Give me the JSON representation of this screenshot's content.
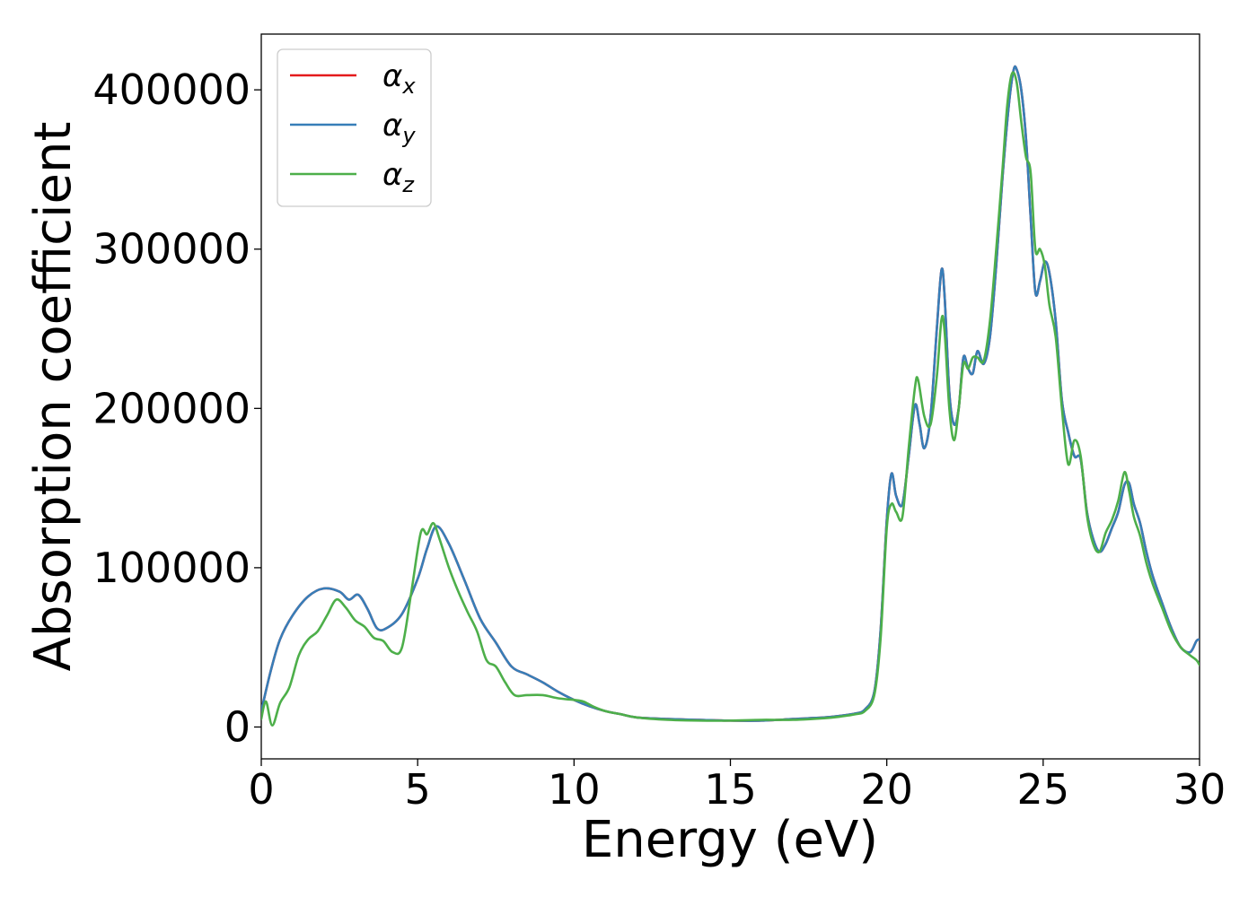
{
  "chart_data": {
    "type": "line",
    "title": "",
    "xlabel": "Energy (eV)",
    "ylabel": "Absorption coefficient",
    "xlim": [
      0,
      30
    ],
    "ylim": [
      -20000,
      435000
    ],
    "xticks": [
      0,
      5,
      10,
      15,
      20,
      25,
      30
    ],
    "yticks": [
      0,
      100000,
      200000,
      300000,
      400000
    ],
    "grid": false,
    "legend_position": "upper-left",
    "series": [
      {
        "name": "α_x",
        "symbol": "α",
        "sub": "x",
        "color": "#e41a1c",
        "x": [
          0,
          0.3,
          0.6,
          1.0,
          1.5,
          2.0,
          2.5,
          2.8,
          3.1,
          3.4,
          3.7,
          4.0,
          4.5,
          5.0,
          5.3,
          5.6,
          6.0,
          6.5,
          7.0,
          7.5,
          8.0,
          8.5,
          9.0,
          9.5,
          10.0,
          10.5,
          11.0,
          11.5,
          12.0,
          13.0,
          14.0,
          15.0,
          16.0,
          17.0,
          18.0,
          18.5,
          19.0,
          19.3,
          19.6,
          19.8,
          20.0,
          20.15,
          20.3,
          20.5,
          20.7,
          20.9,
          21.05,
          21.2,
          21.4,
          21.6,
          21.75,
          21.85,
          22.0,
          22.15,
          22.3,
          22.45,
          22.6,
          22.75,
          22.9,
          23.1,
          23.3,
          23.5,
          23.7,
          23.9,
          24.05,
          24.15,
          24.3,
          24.45,
          24.6,
          24.75,
          24.9,
          25.05,
          25.2,
          25.4,
          25.6,
          25.8,
          26.0,
          26.2,
          26.4,
          26.6,
          26.8,
          27.0,
          27.2,
          27.4,
          27.6,
          27.75,
          27.9,
          28.1,
          28.3,
          28.5,
          28.8,
          29.1,
          29.4,
          29.7,
          29.9,
          30.0
        ],
        "y": [
          10000,
          35000,
          55000,
          70000,
          82000,
          87000,
          85000,
          80000,
          83000,
          74000,
          62000,
          62000,
          71000,
          93000,
          112000,
          126000,
          115000,
          92000,
          68000,
          53000,
          38000,
          33000,
          28000,
          22000,
          17000,
          13000,
          10000,
          8000,
          6000,
          5000,
          4500,
          4000,
          4000,
          5000,
          6000,
          7000,
          8500,
          11000,
          22000,
          60000,
          130000,
          159000,
          145000,
          140000,
          170000,
          202000,
          190000,
          175000,
          195000,
          250000,
          287000,
          270000,
          210000,
          190000,
          200000,
          232000,
          225000,
          222000,
          236000,
          228000,
          245000,
          290000,
          345000,
          390000,
          412000,
          413000,
          400000,
          370000,
          320000,
          273000,
          280000,
          292000,
          285000,
          255000,
          205000,
          185000,
          170000,
          168000,
          135000,
          118000,
          110000,
          115000,
          125000,
          135000,
          152000,
          153000,
          140000,
          128000,
          110000,
          95000,
          78000,
          62000,
          50000,
          47000,
          54000,
          55000
        ]
      },
      {
        "name": "α_y",
        "symbol": "α",
        "sub": "y",
        "color": "#377eb8",
        "x": [
          0,
          0.3,
          0.6,
          1.0,
          1.5,
          2.0,
          2.5,
          2.8,
          3.1,
          3.4,
          3.7,
          4.0,
          4.5,
          5.0,
          5.3,
          5.6,
          6.0,
          6.5,
          7.0,
          7.5,
          8.0,
          8.5,
          9.0,
          9.5,
          10.0,
          10.5,
          11.0,
          11.5,
          12.0,
          13.0,
          14.0,
          15.0,
          16.0,
          17.0,
          18.0,
          18.5,
          19.0,
          19.3,
          19.6,
          19.8,
          20.0,
          20.15,
          20.3,
          20.5,
          20.7,
          20.9,
          21.05,
          21.2,
          21.4,
          21.6,
          21.75,
          21.85,
          22.0,
          22.15,
          22.3,
          22.45,
          22.6,
          22.75,
          22.9,
          23.1,
          23.3,
          23.5,
          23.7,
          23.9,
          24.05,
          24.15,
          24.3,
          24.45,
          24.6,
          24.75,
          24.9,
          25.05,
          25.2,
          25.4,
          25.6,
          25.8,
          26.0,
          26.2,
          26.4,
          26.6,
          26.8,
          27.0,
          27.2,
          27.4,
          27.6,
          27.75,
          27.9,
          28.1,
          28.3,
          28.5,
          28.8,
          29.1,
          29.4,
          29.7,
          29.9,
          30.0
        ],
        "y": [
          10000,
          35000,
          55000,
          70000,
          82000,
          87000,
          85000,
          80000,
          83000,
          74000,
          62000,
          62000,
          71000,
          93000,
          112000,
          126000,
          115000,
          92000,
          68000,
          53000,
          38000,
          33000,
          28000,
          22000,
          17000,
          13000,
          10000,
          8000,
          6000,
          5000,
          4500,
          4000,
          4000,
          5000,
          6000,
          7000,
          8500,
          11000,
          22000,
          60000,
          130000,
          159000,
          145000,
          140000,
          170000,
          202000,
          190000,
          175000,
          195000,
          250000,
          287000,
          270000,
          210000,
          190000,
          200000,
          232000,
          225000,
          222000,
          236000,
          228000,
          245000,
          290000,
          345000,
          390000,
          412000,
          413000,
          400000,
          370000,
          320000,
          273000,
          280000,
          292000,
          285000,
          255000,
          205000,
          185000,
          170000,
          168000,
          135000,
          118000,
          110000,
          115000,
          125000,
          135000,
          152000,
          153000,
          140000,
          128000,
          110000,
          95000,
          78000,
          62000,
          50000,
          47000,
          54000,
          55000
        ]
      },
      {
        "name": "α_z",
        "symbol": "α",
        "sub": "z",
        "color": "#4daf4a",
        "x": [
          0,
          0.15,
          0.35,
          0.6,
          0.9,
          1.2,
          1.5,
          1.8,
          2.1,
          2.4,
          2.7,
          3.0,
          3.3,
          3.6,
          3.9,
          4.2,
          4.5,
          4.8,
          5.1,
          5.3,
          5.5,
          5.7,
          6.0,
          6.3,
          6.6,
          6.9,
          7.2,
          7.5,
          7.8,
          8.1,
          8.5,
          9.0,
          9.5,
          10.0,
          10.3,
          10.6,
          11.0,
          11.5,
          12.0,
          13.0,
          14.0,
          15.0,
          16.0,
          17.0,
          18.0,
          18.5,
          19.0,
          19.3,
          19.6,
          19.8,
          20.0,
          20.15,
          20.3,
          20.5,
          20.7,
          20.9,
          21.0,
          21.2,
          21.4,
          21.6,
          21.75,
          21.85,
          22.0,
          22.15,
          22.3,
          22.45,
          22.6,
          22.75,
          22.9,
          23.1,
          23.3,
          23.5,
          23.7,
          23.85,
          24.0,
          24.15,
          24.3,
          24.45,
          24.6,
          24.75,
          24.9,
          25.05,
          25.2,
          25.4,
          25.6,
          25.8,
          26.0,
          26.2,
          26.4,
          26.6,
          26.8,
          27.0,
          27.2,
          27.4,
          27.6,
          27.75,
          27.9,
          28.1,
          28.3,
          28.5,
          28.8,
          29.1,
          29.4,
          29.7,
          29.9,
          30.0
        ],
        "y": [
          5000,
          16000,
          1000,
          15000,
          25000,
          45000,
          55000,
          60000,
          70000,
          80000,
          75000,
          67000,
          63000,
          56000,
          54000,
          47000,
          50000,
          85000,
          122000,
          121000,
          128000,
          118000,
          100000,
          85000,
          72000,
          60000,
          42000,
          38000,
          28000,
          20000,
          20000,
          20000,
          18000,
          17000,
          16000,
          13000,
          10000,
          8000,
          6000,
          4500,
          4000,
          4000,
          4500,
          4500,
          5500,
          6500,
          8000,
          10000,
          20000,
          55000,
          125000,
          140000,
          135000,
          132000,
          175000,
          213000,
          218000,
          195000,
          190000,
          220000,
          256000,
          248000,
          200000,
          180000,
          200000,
          228000,
          225000,
          232000,
          232000,
          230000,
          255000,
          300000,
          350000,
          390000,
          410000,
          405000,
          380000,
          358000,
          348000,
          300000,
          300000,
          290000,
          265000,
          245000,
          200000,
          165000,
          180000,
          170000,
          133000,
          115000,
          110000,
          122000,
          130000,
          142000,
          160000,
          148000,
          132000,
          120000,
          103000,
          90000,
          75000,
          60000,
          50000,
          45000,
          42000,
          39000
        ]
      }
    ]
  }
}
